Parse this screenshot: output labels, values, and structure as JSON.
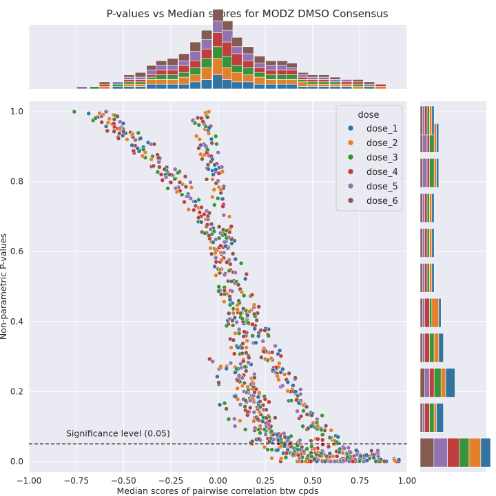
{
  "chart_data": {
    "type": "scatter",
    "title": "P-values vs Median scores for MODZ DMSO Consensus",
    "xlabel": "Median scores of pairwise correlation btw cpds",
    "ylabel": "Non-parametric P-values",
    "xlim": [
      -1.0,
      1.0
    ],
    "ylim": [
      -0.03,
      1.03
    ],
    "xticks": [
      "−1.00",
      "−0.75",
      "−0.50",
      "−0.25",
      "0.00",
      "0.25",
      "0.50",
      "0.75",
      "1.00"
    ],
    "xtick_values": [
      -1.0,
      -0.75,
      -0.5,
      -0.25,
      0.0,
      0.25,
      0.5,
      0.75,
      1.0
    ],
    "yticks": [
      "0.0",
      "0.2",
      "0.4",
      "0.6",
      "0.8",
      "1.0"
    ],
    "ytick_values": [
      0.0,
      0.2,
      0.4,
      0.6,
      0.8,
      1.0
    ],
    "grid": true,
    "legend": {
      "title": "dose",
      "placement": "top-right",
      "entries": [
        "dose_1",
        "dose_2",
        "dose_3",
        "dose_4",
        "dose_5",
        "dose_6"
      ]
    },
    "series_colors": [
      "#3274a1",
      "#e1812c",
      "#3a923a",
      "#c03d3e",
      "#9372b2",
      "#845b53"
    ],
    "annotation": {
      "text": "Significance level (0.05)",
      "y": 0.05,
      "line_style": "dashed"
    },
    "trend_curves": {
      "description_points": "approximate band centerlines used to place the scatter",
      "left_band": [
        [
          -0.65,
          1.0
        ],
        [
          -0.45,
          0.93
        ],
        [
          -0.25,
          0.82
        ],
        [
          -0.1,
          0.72
        ],
        [
          0.0,
          0.62
        ],
        [
          0.05,
          0.5
        ],
        [
          0.1,
          0.38
        ],
        [
          0.15,
          0.22
        ],
        [
          0.25,
          0.08
        ],
        [
          0.5,
          0.01
        ],
        [
          0.8,
          0.0
        ]
      ],
      "right_band": [
        [
          -0.1,
          1.0
        ],
        [
          -0.05,
          0.9
        ],
        [
          0.0,
          0.78
        ],
        [
          0.05,
          0.62
        ],
        [
          0.15,
          0.45
        ],
        [
          0.25,
          0.33
        ],
        [
          0.35,
          0.23
        ],
        [
          0.45,
          0.15
        ],
        [
          0.55,
          0.08
        ],
        [
          0.7,
          0.02
        ],
        [
          0.95,
          0.0
        ]
      ],
      "middle_band": [
        [
          0.05,
          0.3
        ],
        [
          0.15,
          0.15
        ],
        [
          0.3,
          0.06
        ],
        [
          0.45,
          0.02
        ],
        [
          0.7,
          0.0
        ]
      ]
    },
    "top_histogram": {
      "bins_center": [
        -0.72,
        -0.65,
        -0.6,
        -0.53,
        -0.47,
        -0.41,
        -0.35,
        -0.3,
        -0.24,
        -0.18,
        -0.12,
        -0.06,
        0.0,
        0.05,
        0.1,
        0.16,
        0.22,
        0.28,
        0.34,
        0.39,
        0.45,
        0.5,
        0.56,
        0.62,
        0.68,
        0.74,
        0.8,
        0.86
      ],
      "stacks": [
        [
          0,
          0,
          0,
          0,
          1,
          0
        ],
        [
          0,
          0,
          1,
          0,
          0,
          0
        ],
        [
          0,
          1,
          0,
          1,
          0,
          1
        ],
        [
          1,
          0,
          1,
          0,
          1,
          0
        ],
        [
          1,
          1,
          1,
          1,
          1,
          1
        ],
        [
          1,
          1,
          1,
          1,
          1,
          2
        ],
        [
          2,
          2,
          1,
          1,
          2,
          2
        ],
        [
          2,
          2,
          2,
          2,
          2,
          2
        ],
        [
          2,
          2,
          2,
          2,
          2,
          3
        ],
        [
          2,
          3,
          2,
          3,
          2,
          3
        ],
        [
          3,
          3,
          3,
          3,
          4,
          4
        ],
        [
          4,
          5,
          4,
          4,
          4,
          4
        ],
        [
          6,
          7,
          5,
          6,
          5,
          5
        ],
        [
          4,
          5,
          5,
          6,
          5,
          4
        ],
        [
          3,
          4,
          3,
          5,
          3,
          4
        ],
        [
          3,
          3,
          3,
          3,
          3,
          3
        ],
        [
          2,
          3,
          2,
          2,
          2,
          3
        ],
        [
          2,
          2,
          2,
          2,
          2,
          2
        ],
        [
          2,
          2,
          2,
          2,
          2,
          2
        ],
        [
          2,
          2,
          2,
          2,
          1,
          2
        ],
        [
          1,
          2,
          1,
          1,
          1,
          1
        ],
        [
          1,
          1,
          1,
          1,
          1,
          1
        ],
        [
          1,
          1,
          1,
          1,
          1,
          1
        ],
        [
          1,
          1,
          1,
          0,
          1,
          1
        ],
        [
          1,
          1,
          0,
          1,
          1,
          0
        ],
        [
          0,
          1,
          1,
          1,
          0,
          1
        ],
        [
          0,
          0,
          1,
          0,
          1,
          1
        ],
        [
          0,
          1,
          0,
          1,
          0,
          0
        ]
      ]
    },
    "right_histogram": {
      "bins_center": [
        0.025,
        0.125,
        0.225,
        0.325,
        0.425,
        0.525,
        0.625,
        0.725,
        0.825,
        0.925,
        0.975
      ],
      "stacks": [
        [
          10,
          12,
          10,
          12,
          14,
          14
        ],
        [
          3,
          1,
          2,
          2,
          1,
          1
        ],
        [
          4,
          2,
          3,
          2,
          2,
          2
        ],
        [
          2,
          2,
          2,
          2,
          1,
          1
        ],
        [
          1,
          3,
          1,
          2,
          1,
          1
        ],
        [
          1,
          1,
          1,
          1,
          1,
          1
        ],
        [
          1,
          1,
          1,
          1,
          1,
          1
        ],
        [
          1,
          1,
          1,
          1,
          1,
          1
        ],
        [
          1,
          1,
          2,
          1,
          2,
          1
        ],
        [
          1,
          1,
          2,
          1,
          2,
          1
        ],
        [
          1,
          1,
          1,
          1,
          1,
          1
        ]
      ]
    }
  }
}
